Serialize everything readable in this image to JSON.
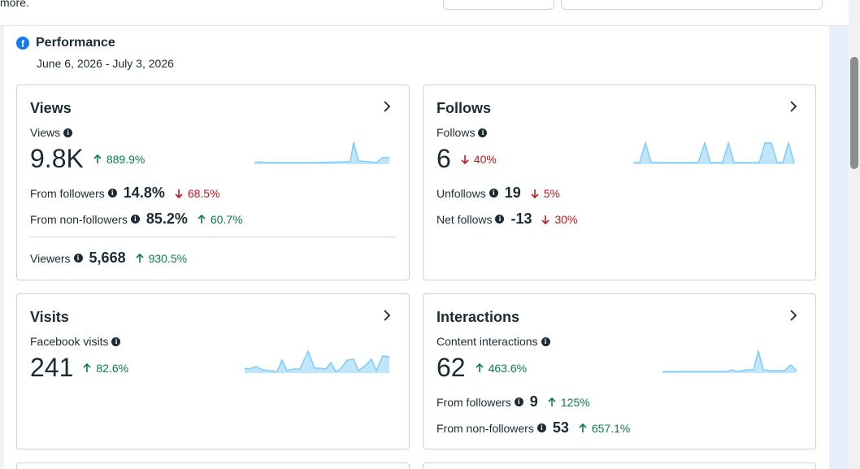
{
  "top_bar": {
    "more_text": "more."
  },
  "performance": {
    "title": "Performance",
    "date_range": "June 6, 2026 - July 3, 2026"
  },
  "cards": {
    "views": {
      "title": "Views",
      "metric_label": "Views",
      "value": "9.8K",
      "delta": "889.9%",
      "delta_direction": "up",
      "from_followers_label": "From followers",
      "from_followers_value": "14.8%",
      "from_followers_delta": "68.5%",
      "from_followers_direction": "down",
      "non_followers_label": "From non-followers",
      "non_followers_value": "85.2%",
      "non_followers_delta": "60.7%",
      "non_followers_direction": "up",
      "viewers_label": "Viewers",
      "viewers_value": "5,668",
      "viewers_delta": "930.5%",
      "viewers_direction": "up"
    },
    "follows": {
      "title": "Follows",
      "metric_label": "Follows",
      "value": "6",
      "delta": "40%",
      "delta_direction": "down",
      "unfollows_label": "Unfollows",
      "unfollows_value": "19",
      "unfollows_delta": "5%",
      "unfollows_direction": "down",
      "net_label": "Net follows",
      "net_value": "-13",
      "net_delta": "30%",
      "net_direction": "down"
    },
    "visits": {
      "title": "Visits",
      "metric_label": "Facebook visits",
      "value": "241",
      "delta": "82.6%",
      "delta_direction": "up"
    },
    "interactions": {
      "title": "Interactions",
      "metric_label": "Content interactions",
      "value": "62",
      "delta": "463.6%",
      "delta_direction": "up",
      "from_followers_label": "From followers",
      "from_followers_value": "9",
      "from_followers_delta": "125%",
      "from_followers_direction": "up",
      "non_followers_label": "From non-followers",
      "non_followers_value": "53",
      "non_followers_delta": "657.1%",
      "non_followers_direction": "up"
    }
  },
  "colors": {
    "accent_blue": "#1877f2",
    "positive": "#0a7d4b",
    "negative": "#c4151c",
    "sparkline_fill": "#bfe6fb",
    "sparkline_stroke": "#7fcdf3"
  },
  "icons": [
    "facebook-icon",
    "info-icon",
    "chevron-right-icon",
    "arrow-up-icon",
    "arrow-down-icon"
  ]
}
